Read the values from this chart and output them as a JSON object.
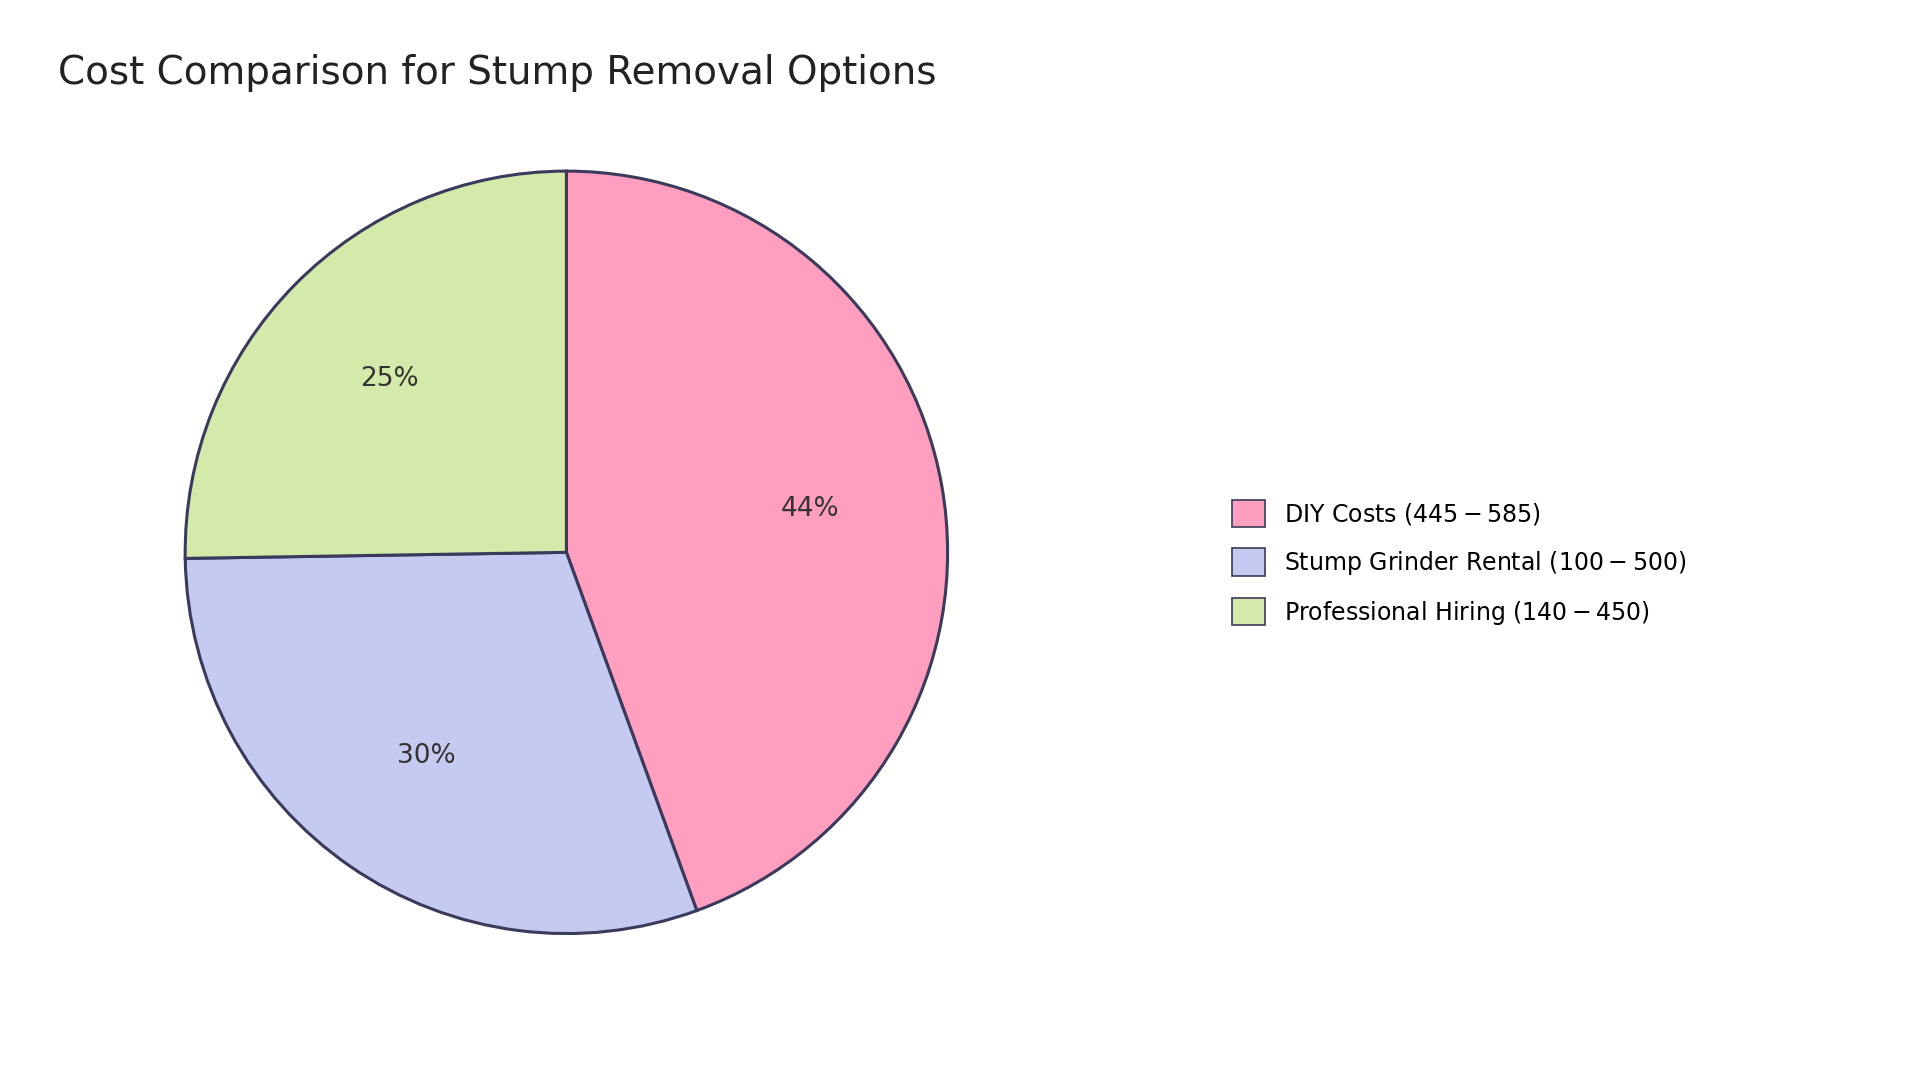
{
  "title": "Cost Comparison for Stump Removal Options",
  "slices": [
    44,
    30,
    25
  ],
  "labels": [
    "DIY Costs ($445-$585)",
    "Stump Grinder Rental ($100-$500)",
    "Professional Hiring ($140-$450)"
  ],
  "colors": [
    "#FF9EBF",
    "#C5CAF0",
    "#D4EAAA"
  ],
  "startangle": 90,
  "title_fontsize": 28,
  "pct_fontsize": 19,
  "legend_fontsize": 17,
  "background_color": "#FFFFFF",
  "edge_color": "#3a3a5c",
  "edge_linewidth": 2.2
}
